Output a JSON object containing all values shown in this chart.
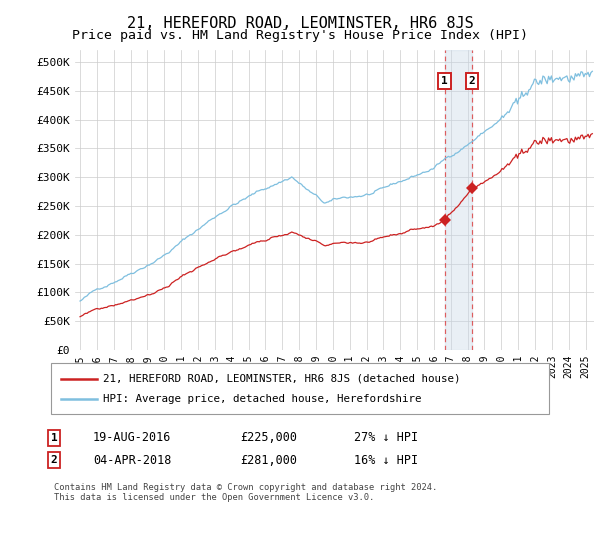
{
  "title": "21, HEREFORD ROAD, LEOMINSTER, HR6 8JS",
  "subtitle": "Price paid vs. HM Land Registry's House Price Index (HPI)",
  "title_fontsize": 11,
  "subtitle_fontsize": 9.5,
  "ylabel_ticks": [
    "£0",
    "£50K",
    "£100K",
    "£150K",
    "£200K",
    "£250K",
    "£300K",
    "£350K",
    "£400K",
    "£450K",
    "£500K"
  ],
  "ytick_values": [
    0,
    50000,
    100000,
    150000,
    200000,
    250000,
    300000,
    350000,
    400000,
    450000,
    500000
  ],
  "ylim": [
    0,
    520000
  ],
  "xlim_start": 1994.7,
  "xlim_end": 2025.5,
  "hpi_color": "#7fbfdf",
  "price_color": "#cc2222",
  "sale1_date": 2016.63,
  "sale1_price": 225000,
  "sale2_date": 2018.25,
  "sale2_price": 281000,
  "legend1_text": "21, HEREFORD ROAD, LEOMINSTER, HR6 8JS (detached house)",
  "legend2_text": "HPI: Average price, detached house, Herefordshire",
  "annotation1_date": "19-AUG-2016",
  "annotation1_price": "£225,000",
  "annotation1_hpi": "27% ↓ HPI",
  "annotation2_date": "04-APR-2018",
  "annotation2_price": "£281,000",
  "annotation2_hpi": "16% ↓ HPI",
  "footer": "Contains HM Land Registry data © Crown copyright and database right 2024.\nThis data is licensed under the Open Government Licence v3.0.",
  "background_color": "#ffffff",
  "grid_color": "#cccccc"
}
